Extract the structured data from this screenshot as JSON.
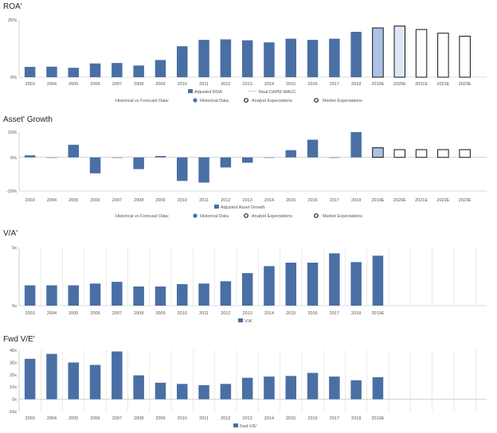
{
  "colors": {
    "historical": "#4a6fa5",
    "analyst_fill": "#a9c2e6",
    "analyst_fill_light": "#dce8f7",
    "market_fill": "#ffffff",
    "market_stroke": "#111111",
    "wacc_line": "#cccccc"
  },
  "chart_data": [
    {
      "type": "bar",
      "title": "ROA'",
      "categories": [
        "2003",
        "2004",
        "2005",
        "2006",
        "2007",
        "2008",
        "2009",
        "2010",
        "2011",
        "2012",
        "2013",
        "2014",
        "2015",
        "2016",
        "2017",
        "2018",
        "2019E",
        "2020E",
        "2021E",
        "2022E",
        "2023E"
      ],
      "series": [
        {
          "name": "Adjusted ROA",
          "values": [
            4.5,
            4.6,
            4.1,
            6.0,
            6.2,
            5.1,
            7.5,
            13.5,
            16.3,
            16.5,
            16.1,
            15.2,
            16.8,
            16.3,
            16.8,
            19.8,
            null,
            null,
            null,
            null,
            null
          ]
        },
        {
          "name": "Analyst Expectations",
          "values": [
            null,
            null,
            null,
            null,
            null,
            null,
            null,
            null,
            null,
            null,
            null,
            null,
            null,
            null,
            null,
            null,
            21.5,
            22.3,
            null,
            null,
            null
          ]
        },
        {
          "name": "Market Expectations",
          "values": [
            null,
            null,
            null,
            null,
            null,
            null,
            null,
            null,
            null,
            null,
            null,
            null,
            null,
            null,
            null,
            null,
            null,
            null,
            20.8,
            19.2,
            17.9
          ]
        }
      ],
      "ylim": [
        0,
        25
      ],
      "yticks": [
        "25%",
        "0%"
      ],
      "grid": false,
      "legend_row1": [
        "Adjusted ROA",
        "Real CAPM WACC"
      ],
      "legend_row2": {
        "label": "Historical vs Forecast Data:",
        "items": [
          "Historical Data",
          "Analyst Expectations",
          "Market Expectations"
        ]
      }
    },
    {
      "type": "bar",
      "title": "Asset' Growth",
      "categories": [
        "2003",
        "2004",
        "2005",
        "2006",
        "2007",
        "2008",
        "2009",
        "2010",
        "2011",
        "2012",
        "2013",
        "2014",
        "2015",
        "2016",
        "2017",
        "2018",
        "2019E",
        "2020E",
        "2021E",
        "2022E",
        "2023E"
      ],
      "series": [
        {
          "name": "Adjusted Asset Growth",
          "values": [
            1.2,
            0,
            7.5,
            -9.5,
            -0.3,
            -7.0,
            0.8,
            -14.0,
            -15.0,
            -6.0,
            -3.2,
            0,
            4.3,
            10.5,
            -0.3,
            15.0,
            null,
            null,
            null,
            null,
            null
          ]
        },
        {
          "name": "Analyst Expectations",
          "values": [
            null,
            null,
            null,
            null,
            null,
            null,
            null,
            null,
            null,
            null,
            null,
            null,
            null,
            null,
            null,
            null,
            5.7,
            null,
            null,
            null,
            null
          ]
        },
        {
          "name": "Market Expectations",
          "values": [
            null,
            null,
            null,
            null,
            null,
            null,
            null,
            null,
            null,
            null,
            null,
            null,
            null,
            null,
            null,
            null,
            null,
            4.6,
            4.6,
            4.6,
            4.6
          ]
        }
      ],
      "ylim": [
        -20,
        15
      ],
      "yticks": [
        "15%",
        "0%",
        "-20%"
      ],
      "grid": false,
      "legend_row1": [
        "Adjusted Asset Growth"
      ],
      "legend_row2": {
        "label": "Historical vs Forecast Data:",
        "items": [
          "Historical Data",
          "Analyst Expectations",
          "Market Expectations"
        ]
      }
    },
    {
      "type": "bar",
      "title": "V/A'",
      "categories": [
        "2003",
        "2004",
        "2005",
        "2006",
        "2007",
        "2008",
        "2009",
        "2010",
        "2011",
        "2012",
        "2013",
        "2014",
        "2015",
        "2016",
        "2017",
        "2018",
        "2019E"
      ],
      "series": [
        {
          "name": "V/A'",
          "values": [
            1.75,
            1.75,
            1.75,
            1.9,
            2.05,
            1.65,
            1.65,
            1.85,
            1.9,
            2.1,
            2.8,
            3.4,
            3.7,
            3.7,
            4.5,
            3.75,
            4.3
          ]
        }
      ],
      "ylim": [
        0,
        5
      ],
      "yticks": [
        "5x",
        "0x"
      ],
      "grid": true,
      "legend_row1": [
        "V/A'"
      ]
    },
    {
      "type": "bar",
      "title": "Fwd V/E'",
      "categories": [
        "2003",
        "2004",
        "2005",
        "2006",
        "2007",
        "2008",
        "2009",
        "2010",
        "2011",
        "2012",
        "2013",
        "2014",
        "2015",
        "2016",
        "2017",
        "2018",
        "2019E"
      ],
      "series": [
        {
          "name": "Fwd V/E'",
          "values": [
            33,
            37,
            30,
            28,
            39,
            19.5,
            13.5,
            12.5,
            11.5,
            12.5,
            17.5,
            18.5,
            19,
            21.5,
            18.5,
            15.5,
            18
          ]
        }
      ],
      "ylim": [
        -10,
        40
      ],
      "yticks": [
        "40x",
        "30x",
        "20x",
        "10x",
        "0x",
        "-10x"
      ],
      "grid": true,
      "legend_row1": [
        "Fwd V/E'"
      ]
    }
  ]
}
